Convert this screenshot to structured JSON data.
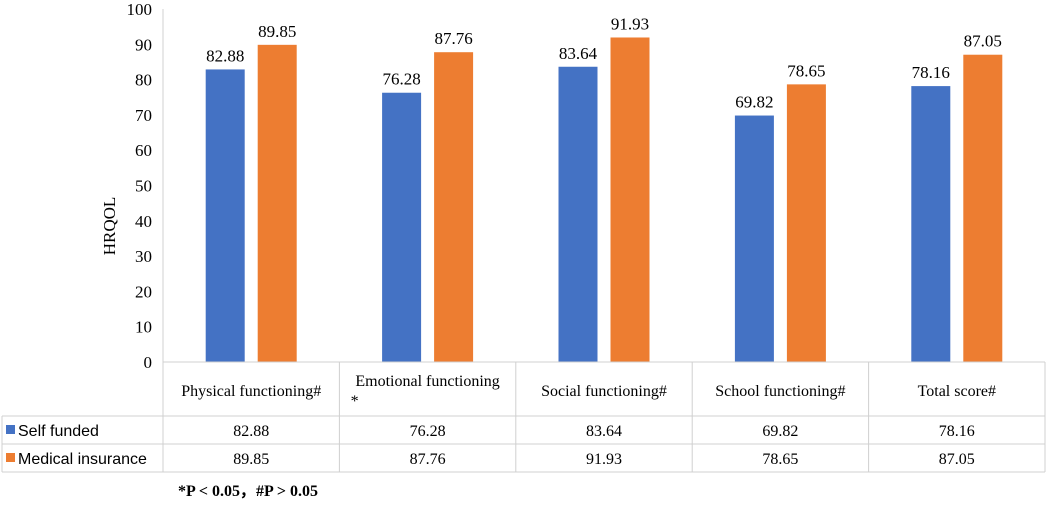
{
  "chart_data": {
    "type": "bar",
    "title": "",
    "xlabel": "",
    "ylabel": "HRQOL",
    "ylim": [
      0,
      100
    ],
    "yticks": [
      0,
      10,
      20,
      30,
      40,
      50,
      60,
      70,
      80,
      90,
      100
    ],
    "categories": [
      "Physical functioning#",
      "Emotional functioning *",
      "Social functioning#",
      "School functioning#",
      "Total score#"
    ],
    "series": [
      {
        "name": "Self funded",
        "color": "#4472C4",
        "values": [
          82.88,
          76.28,
          83.64,
          69.82,
          78.16
        ],
        "labels": [
          "82.88",
          "76.28",
          "83.64",
          "69.82",
          "78.16"
        ]
      },
      {
        "name": "Medical insurance",
        "color": "#ED7D31",
        "values": [
          89.85,
          87.76,
          91.93,
          78.65,
          87.05
        ],
        "labels": [
          "89.85",
          "87.76",
          "91.93",
          "78.65",
          "87.05"
        ]
      }
    ],
    "grid": false,
    "legend": "data-table-left",
    "footnote": "*P < 0.05，#P > 0.05"
  }
}
